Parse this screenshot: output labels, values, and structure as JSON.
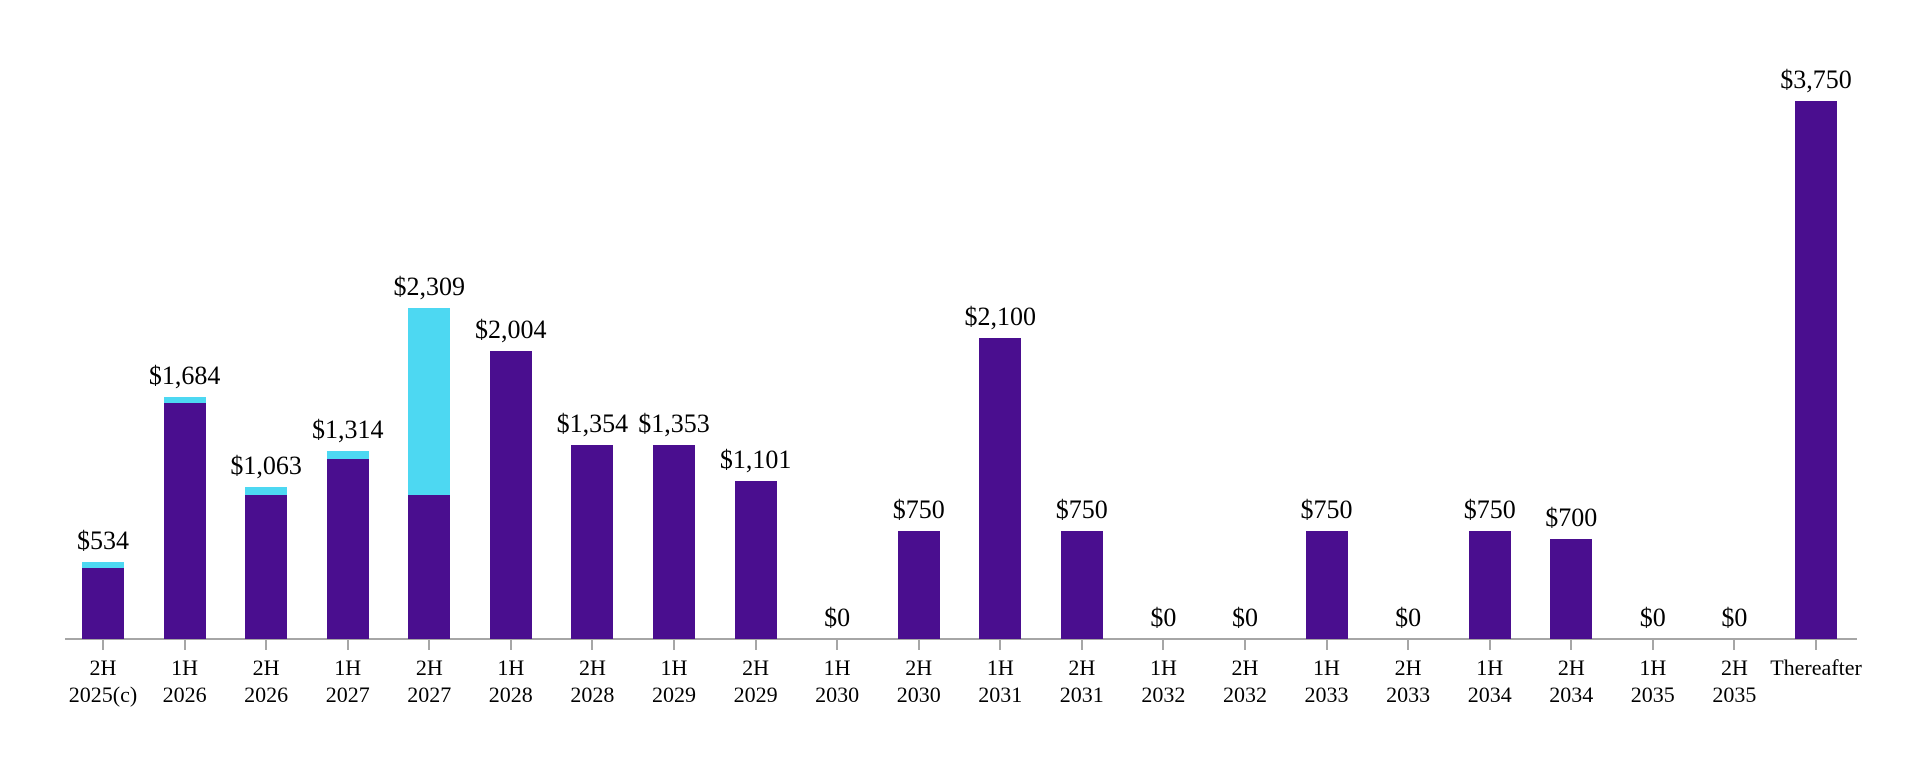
{
  "chart_data": {
    "type": "bar",
    "stacked": true,
    "title": "",
    "xlabel": "",
    "ylabel": "",
    "categories": [
      "2H 2025(c)",
      "1H 2026",
      "2H 2026",
      "1H 2027",
      "2H 2027",
      "1H 2028",
      "2H 2028",
      "1H 2029",
      "2H 2029",
      "1H 2030",
      "2H 2030",
      "1H 2031",
      "2H 2031",
      "1H 2032",
      "2H 2032",
      "1H 2033",
      "2H 2033",
      "1H 2034",
      "2H 2034",
      "1H 2035",
      "2H 2035",
      "Thereafter"
    ],
    "category_lines": [
      [
        "2H",
        "2025(c)"
      ],
      [
        "1H",
        "2026"
      ],
      [
        "2H",
        "2026"
      ],
      [
        "1H",
        "2027"
      ],
      [
        "2H",
        "2027"
      ],
      [
        "1H",
        "2028"
      ],
      [
        "2H",
        "2028"
      ],
      [
        "1H",
        "2029"
      ],
      [
        "2H",
        "2029"
      ],
      [
        "1H",
        "2030"
      ],
      [
        "2H",
        "2030"
      ],
      [
        "1H",
        "2031"
      ],
      [
        "2H",
        "2031"
      ],
      [
        "1H",
        "2032"
      ],
      [
        "2H",
        "2032"
      ],
      [
        "1H",
        "2033"
      ],
      [
        "2H",
        "2033"
      ],
      [
        "1H",
        "2034"
      ],
      [
        "2H",
        "2034"
      ],
      [
        "1H",
        "2035"
      ],
      [
        "2H",
        "2035"
      ],
      [
        "Thereafter",
        ""
      ]
    ],
    "totals": [
      534,
      1684,
      1063,
      1314,
      2309,
      2004,
      1354,
      1353,
      1101,
      0,
      750,
      2100,
      750,
      0,
      0,
      750,
      0,
      750,
      700,
      0,
      0,
      3750
    ],
    "value_labels": [
      "$534",
      "$1,684",
      "$1,063",
      "$1,314",
      "$2,309",
      "$2,004",
      "$1,354",
      "$1,353",
      "$1,101",
      "$0",
      "$750",
      "$2,100",
      "$750",
      "$0",
      "$0",
      "$750",
      "$0",
      "$750",
      "$700",
      "$0",
      "$0",
      "$3,750"
    ],
    "series": [
      {
        "name": "primary-purple",
        "color": "#4A0E8F",
        "values": [
          494,
          1644,
          1007,
          1258,
          1004,
          2004,
          1354,
          1353,
          1101,
          0,
          750,
          2100,
          750,
          0,
          0,
          750,
          0,
          750,
          700,
          0,
          0,
          3750
        ]
      },
      {
        "name": "secondary-cyan",
        "color": "#4DD8F2",
        "values": [
          40,
          40,
          56,
          56,
          1305,
          0,
          0,
          0,
          0,
          0,
          0,
          0,
          0,
          0,
          0,
          0,
          0,
          0,
          0,
          0,
          0,
          0
        ]
      }
    ],
    "ylim": [
      0,
      3750
    ],
    "grid": false,
    "legend": false,
    "axis_color": "#A6A6A6",
    "text_color": "#000000"
  }
}
